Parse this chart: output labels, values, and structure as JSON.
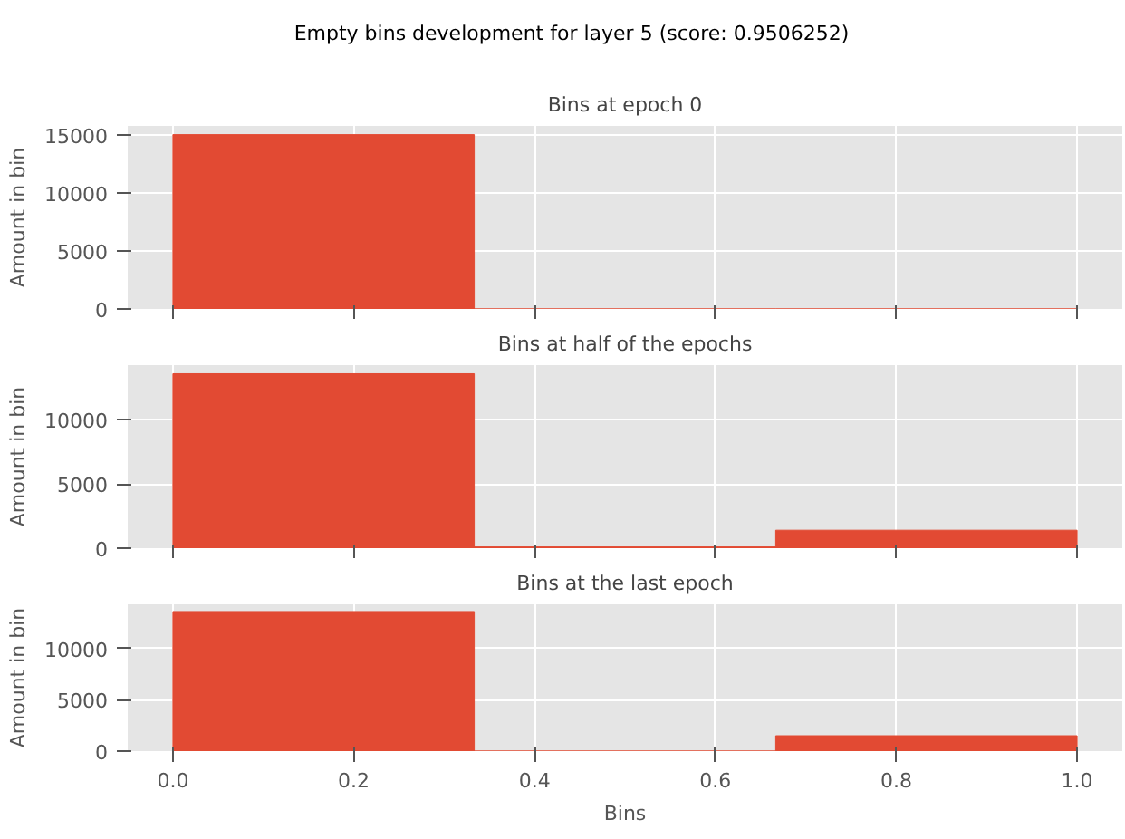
{
  "chart_data": [
    {
      "type": "histogram",
      "title": "Bins at epoch 0",
      "ylabel": "Amount in bin",
      "bins": [
        0,
        0.3333,
        0.6667,
        1
      ],
      "values": [
        15000,
        0,
        0
      ],
      "color": "#e24a33",
      "xlim": [
        -0.05,
        1.05
      ],
      "xticks": [
        0,
        0.2,
        0.4,
        0.6,
        0.8,
        1.0
      ],
      "ylim": [
        0,
        15750
      ],
      "yticks": [
        0,
        5000,
        10000,
        15000
      ],
      "grid": true,
      "tick_labels": "y",
      "annotations": [
        "Empty bins development for layer 5 (score: 0.9506252)"
      ]
    },
    {
      "type": "histogram",
      "title": "Bins at half of the epochs",
      "ylabel": "Amount in bin",
      "bins": [
        0,
        0.3333,
        0.6667,
        1
      ],
      "values": [
        13600,
        100,
        1400
      ],
      "color": "#e24a33",
      "xlim": [
        -0.05,
        1.05
      ],
      "xticks": [
        0,
        0.2,
        0.4,
        0.6,
        0.8,
        1.0
      ],
      "ylim": [
        0,
        14270
      ],
      "yticks": [
        0,
        5000,
        10000
      ],
      "grid": true,
      "tick_labels": "y"
    },
    {
      "type": "histogram",
      "title": "Bins at the last epoch",
      "xlabel": "Bins",
      "ylabel": "Amount in bin",
      "bins": [
        0,
        0.3333,
        0.6667,
        1
      ],
      "values": [
        13600,
        0,
        1500
      ],
      "color": "#e24a33",
      "xlim": [
        -0.05,
        1.05
      ],
      "xticks": [
        {
          "value": 0,
          "label": "0.0"
        },
        0.2,
        0.4,
        0.6,
        0.8,
        {
          "value": 1,
          "label": "1.0"
        }
      ],
      "ylim": [
        0,
        14300
      ],
      "yticks": [
        0,
        5000,
        10000
      ],
      "grid": true
    }
  ]
}
